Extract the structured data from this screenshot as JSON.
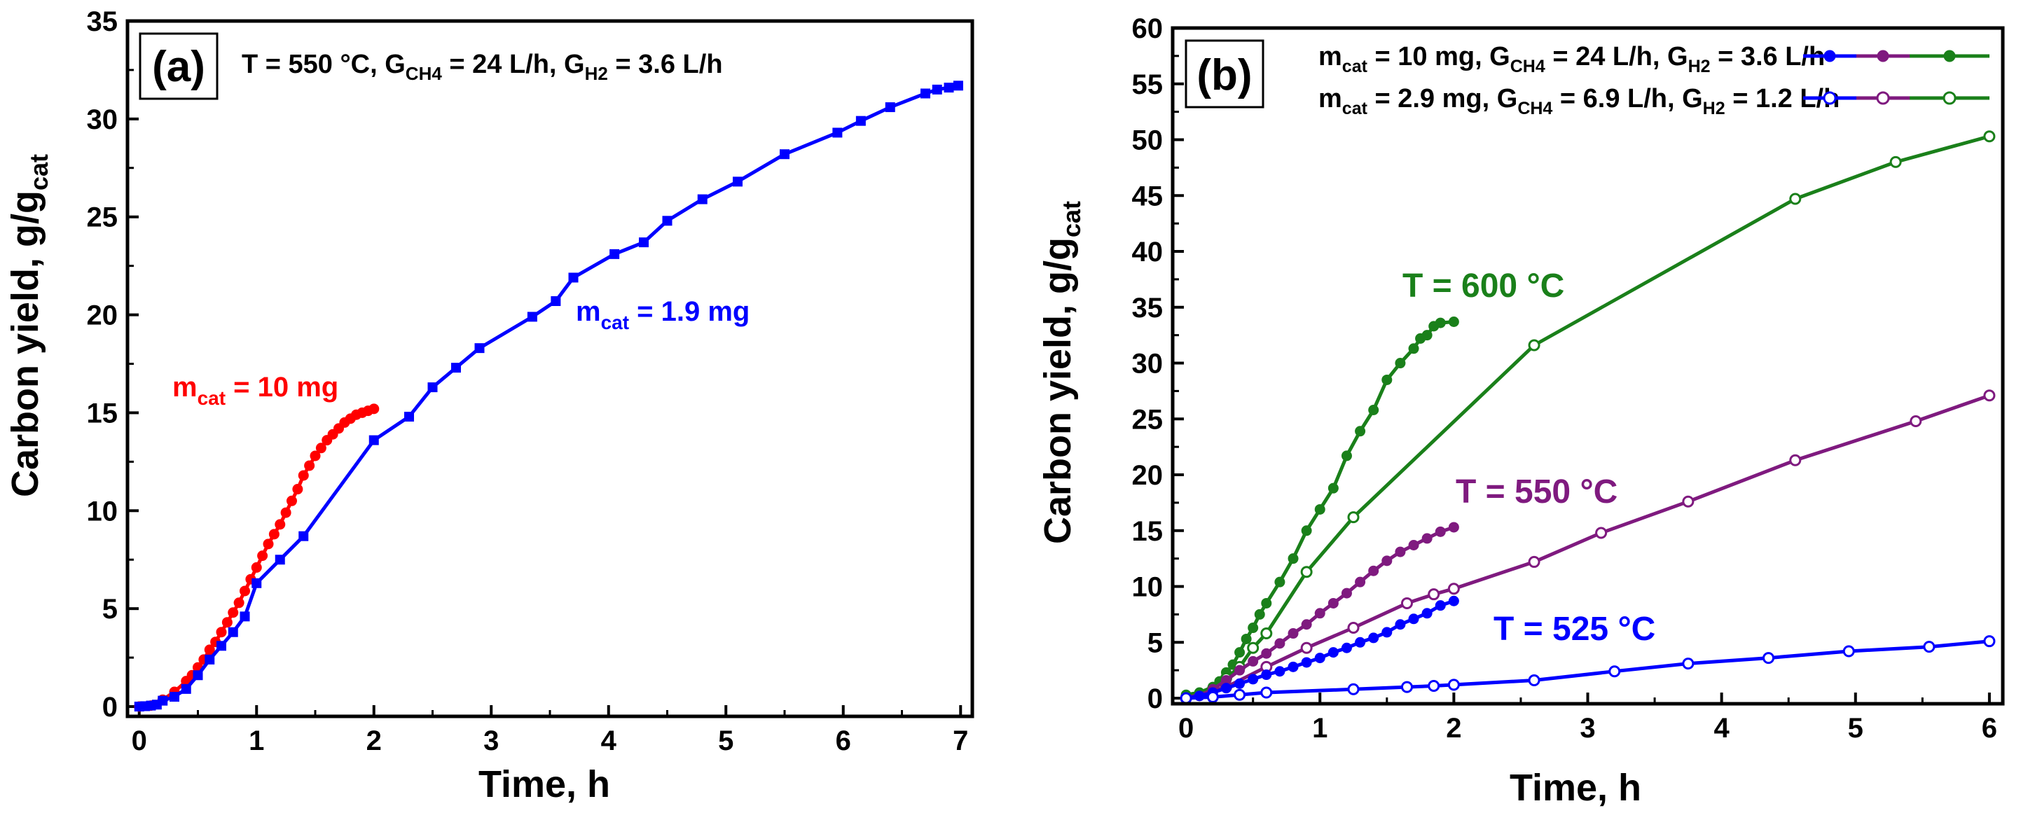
{
  "chart_data": [
    {
      "type": "line",
      "panel_label": "(a)",
      "conditions": {
        "lead": "T = 550 °C,  G",
        "sub1": "CH4",
        "mid": " = 24 L/h,  G",
        "sub2": "H2",
        "tail": " = 3.6 L/h"
      },
      "xlabel": "Time, h",
      "ylabel": {
        "main": "Carbon yield, g/g",
        "sub": "cat"
      },
      "xlim": [
        -0.1,
        7.1
      ],
      "ylim": [
        -0.5,
        35
      ],
      "xticks": [
        "0",
        "1",
        "2",
        "3",
        "4",
        "5",
        "6",
        "7"
      ],
      "yticks": [
        "0",
        "5",
        "10",
        "15",
        "20",
        "25",
        "30",
        "35"
      ],
      "grid": false,
      "series": [
        {
          "name": "m_cat = 10 mg",
          "label": {
            "pre": "m",
            "sub": "cat",
            "post": " = 10 mg"
          },
          "color": "#ff0000",
          "marker": "circle",
          "x": [
            0,
            0.1,
            0.2,
            0.3,
            0.4,
            0.45,
            0.5,
            0.55,
            0.6,
            0.65,
            0.7,
            0.75,
            0.8,
            0.85,
            0.9,
            0.95,
            1.0,
            1.05,
            1.1,
            1.15,
            1.2,
            1.25,
            1.3,
            1.35,
            1.4,
            1.45,
            1.5,
            1.55,
            1.6,
            1.65,
            1.7,
            1.75,
            1.8,
            1.85,
            1.9,
            1.95,
            2.0
          ],
          "y": [
            0,
            0.05,
            0.35,
            0.75,
            1.3,
            1.6,
            2.0,
            2.4,
            2.9,
            3.3,
            3.8,
            4.3,
            4.8,
            5.3,
            5.9,
            6.5,
            7.1,
            7.7,
            8.3,
            8.8,
            9.3,
            9.9,
            10.5,
            11.1,
            11.8,
            12.3,
            12.8,
            13.2,
            13.6,
            13.9,
            14.2,
            14.5,
            14.7,
            14.9,
            15.0,
            15.1,
            15.2
          ]
        },
        {
          "name": "m_cat = 1.9 mg",
          "label": {
            "pre": "m",
            "sub": "cat",
            "post": " = 1.9 mg"
          },
          "color": "#0000ff",
          "marker": "square",
          "x": [
            0,
            0.05,
            0.1,
            0.15,
            0.2,
            0.3,
            0.4,
            0.5,
            0.6,
            0.7,
            0.8,
            0.9,
            1.0,
            1.2,
            1.4,
            2.0,
            2.3,
            2.5,
            2.7,
            2.9,
            3.35,
            3.55,
            3.7,
            4.05,
            4.3,
            4.5,
            4.8,
            5.1,
            5.5,
            5.95,
            6.15,
            6.4,
            6.7,
            6.8,
            6.9,
            6.98
          ],
          "y": [
            0,
            0.02,
            0.05,
            0.1,
            0.3,
            0.5,
            0.9,
            1.6,
            2.4,
            3.1,
            3.8,
            4.6,
            6.3,
            7.5,
            8.7,
            13.6,
            14.8,
            16.3,
            17.3,
            18.3,
            19.9,
            20.7,
            21.9,
            23.1,
            23.7,
            24.8,
            25.9,
            26.8,
            28.2,
            29.3,
            29.9,
            30.6,
            31.3,
            31.5,
            31.6,
            31.7
          ]
        }
      ]
    },
    {
      "type": "line",
      "panel_label": "(b)",
      "xlabel": "Time, h",
      "ylabel": {
        "main": "Carbon yield, g/g",
        "sub": "cat"
      },
      "xlim": [
        -0.1,
        6.1
      ],
      "ylim": [
        -0.5,
        60
      ],
      "xticks": [
        "0",
        "1",
        "2",
        "3",
        "4",
        "5",
        "6"
      ],
      "yticks": [
        "0",
        "5",
        "10",
        "15",
        "20",
        "25",
        "30",
        "35",
        "40",
        "45",
        "50",
        "55",
        "60"
      ],
      "grid": false,
      "legend": [
        {
          "pre": "m",
          "s1": "cat",
          "m1": " = 10 mg,  G",
          "s2": "CH4",
          "m2": " = 24 L/h,  G",
          "s3": "H2",
          "post": " = 3.6 L/h",
          "marker": "filled-circle"
        },
        {
          "pre": "m",
          "s1": "cat",
          "m1": " = 2.9 mg, G",
          "s2": "CH4",
          "m2": " = 6.9 L/h, G",
          "s3": "H2",
          "post": " = 1.2 L/h",
          "marker": "open-circle"
        }
      ],
      "annotations": [
        {
          "text": "T = 600 °C",
          "color": "#1a801a"
        },
        {
          "text": "T = 550 °C",
          "color": "#7f1a7f"
        },
        {
          "text": "T = 525 °C",
          "color": "#0000ff"
        }
      ],
      "series": [
        {
          "name": "600 °C, m_cat = 10 mg",
          "color": "#1a801a",
          "marker": "filled-circle",
          "x": [
            0,
            0.1,
            0.2,
            0.25,
            0.3,
            0.35,
            0.4,
            0.45,
            0.5,
            0.55,
            0.6,
            0.7,
            0.8,
            0.9,
            1.0,
            1.1,
            1.2,
            1.3,
            1.4,
            1.5,
            1.6,
            1.7,
            1.75,
            1.8,
            1.85,
            1.9,
            2.0
          ],
          "y": [
            0.3,
            0.5,
            1.0,
            1.5,
            2.3,
            3.0,
            4.1,
            5.3,
            6.3,
            7.5,
            8.5,
            10.4,
            12.5,
            15.0,
            16.9,
            18.8,
            21.7,
            23.9,
            25.8,
            28.5,
            30.0,
            31.3,
            32.2,
            32.5,
            33.3,
            33.6,
            33.7
          ]
        },
        {
          "name": "600 °C, m_cat = 2.9 mg",
          "color": "#1a801a",
          "marker": "open-circle",
          "x": [
            0,
            0.1,
            0.2,
            0.3,
            0.4,
            0.5,
            0.6,
            0.9,
            1.25,
            2.6,
            4.55,
            5.3,
            6.0
          ],
          "y": [
            0,
            0.3,
            0.8,
            1.8,
            2.8,
            4.5,
            5.8,
            11.3,
            16.2,
            31.6,
            44.7,
            48.0,
            50.3
          ]
        },
        {
          "name": "550 °C, m_cat = 10 mg",
          "color": "#7f1a7f",
          "marker": "filled-circle",
          "x": [
            0,
            0.1,
            0.2,
            0.3,
            0.4,
            0.5,
            0.6,
            0.7,
            0.8,
            0.9,
            1.0,
            1.1,
            1.2,
            1.3,
            1.4,
            1.5,
            1.6,
            1.7,
            1.8,
            1.9,
            2.0
          ],
          "y": [
            0,
            0.2,
            0.8,
            1.6,
            2.5,
            3.3,
            4.0,
            4.9,
            5.8,
            6.6,
            7.6,
            8.5,
            9.4,
            10.4,
            11.4,
            12.3,
            13.1,
            13.7,
            14.3,
            14.9,
            15.3
          ]
        },
        {
          "name": "550 °C, m_cat = 2.9 mg",
          "color": "#7f1a7f",
          "marker": "open-circle",
          "x": [
            0,
            0.3,
            0.6,
            0.9,
            1.25,
            1.65,
            1.85,
            2.0,
            2.6,
            3.1,
            3.75,
            4.55,
            5.45,
            6.0
          ],
          "y": [
            0,
            1.0,
            2.8,
            4.5,
            6.3,
            8.5,
            9.3,
            9.8,
            12.2,
            14.8,
            17.6,
            21.3,
            24.8,
            27.1
          ]
        },
        {
          "name": "525 °C, m_cat = 10 mg",
          "color": "#0000ff",
          "marker": "filled-circle",
          "x": [
            0,
            0.1,
            0.2,
            0.3,
            0.4,
            0.5,
            0.6,
            0.7,
            0.8,
            0.9,
            1.0,
            1.1,
            1.2,
            1.3,
            1.4,
            1.5,
            1.6,
            1.7,
            1.8,
            1.9,
            2.0
          ],
          "y": [
            0,
            0.2,
            0.5,
            0.9,
            1.3,
            1.7,
            2.1,
            2.4,
            2.8,
            3.2,
            3.6,
            4.1,
            4.5,
            5.0,
            5.4,
            5.9,
            6.6,
            7.1,
            7.6,
            8.3,
            8.7
          ]
        },
        {
          "name": "525 °C, m_cat = 2.9 mg",
          "color": "#0000ff",
          "marker": "open-circle",
          "x": [
            0,
            0.2,
            0.4,
            0.6,
            1.25,
            1.65,
            1.85,
            2.0,
            2.6,
            3.2,
            3.75,
            4.35,
            4.95,
            5.55,
            6.0
          ],
          "y": [
            0,
            0.1,
            0.3,
            0.5,
            0.8,
            1.0,
            1.1,
            1.2,
            1.6,
            2.4,
            3.1,
            3.6,
            4.2,
            4.6,
            5.1
          ]
        }
      ]
    }
  ]
}
